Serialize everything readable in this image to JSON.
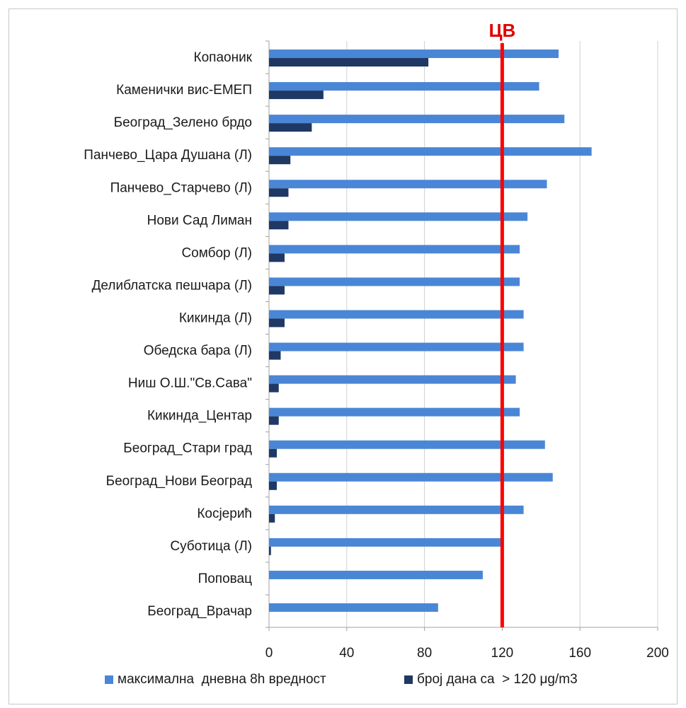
{
  "chart_data": {
    "type": "bar",
    "orientation": "horizontal",
    "categories": [
      "Копаоник",
      "Каменички вис-ЕМЕП",
      "Београд_Зелено брдо",
      "Панчево_Цара Душана (Л)",
      "Панчево_Старчево (Л)",
      "Нови Сад Лиман",
      "Сомбор (Л)",
      "Делиблатска пешчара (Л)",
      "Кикинда (Л)",
      "Обедска бара (Л)",
      "Ниш О.Ш.\"Св.Сава\"",
      "Кикинда_Центар",
      "Београд_Стари град",
      "Београд_Нови Београд",
      "Косјерић",
      "Суботица (Л)",
      "Поповац",
      "Београд_Врачар"
    ],
    "series": [
      {
        "name": "максимална  дневна 8h вредност",
        "color": "#4a86d6",
        "values": [
          149,
          139,
          152,
          166,
          143,
          133,
          129,
          129,
          131,
          131,
          127,
          129,
          142,
          146,
          131,
          120,
          110,
          87
        ]
      },
      {
        "name": "број дана са  > 120 μg/m3",
        "color": "#1f3864",
        "values": [
          82,
          28,
          22,
          11,
          10,
          10,
          8,
          8,
          8,
          6,
          5,
          5,
          4,
          4,
          3,
          1,
          0,
          0
        ]
      }
    ],
    "xlim": [
      0,
      200
    ],
    "xticks": [
      "0",
      "40",
      "80",
      "120",
      "160",
      "200"
    ],
    "grid": true,
    "legend_position": "bottom",
    "reference_line": {
      "value": 120,
      "label": "ЦВ",
      "color": "#ff0000"
    }
  }
}
